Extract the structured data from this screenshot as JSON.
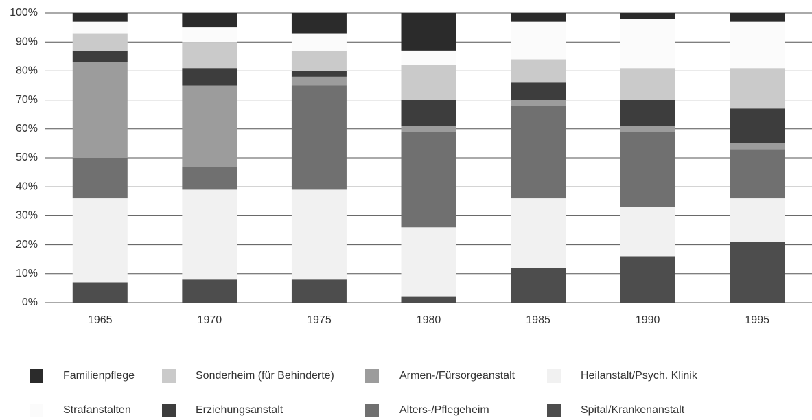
{
  "chart_data": {
    "type": "stacked_bar",
    "categories": [
      "1965",
      "1970",
      "1975",
      "1980",
      "1985",
      "1990",
      "1995"
    ],
    "series": [
      {
        "name": "Spital/Krankenanstalt",
        "color": "#4d4d4d",
        "values": [
          7,
          8,
          8,
          2,
          12,
          16,
          21
        ]
      },
      {
        "name": "Heilanstalt/Psych. Klinik",
        "color": "#f1f1f1",
        "values": [
          29,
          31,
          31,
          24,
          24,
          17,
          15
        ]
      },
      {
        "name": "Alters-/Pflegeheim",
        "color": "#707070",
        "values": [
          14,
          8,
          36,
          33,
          32,
          26,
          17
        ]
      },
      {
        "name": "Armen-/Fürsorgeanstalt",
        "color": "#9c9c9c",
        "values": [
          33,
          28,
          3,
          2,
          2,
          2,
          2
        ]
      },
      {
        "name": "Erziehungsanstalt",
        "color": "#3d3d3d",
        "values": [
          4,
          6,
          2,
          9,
          6,
          9,
          12
        ]
      },
      {
        "name": "Sonderheim (für Behinderte)",
        "color": "#cacaca",
        "values": [
          6,
          9,
          7,
          12,
          8,
          11,
          14
        ]
      },
      {
        "name": "Strafanstalten",
        "color": "#fbfbfb",
        "values": [
          4,
          5,
          6,
          5,
          13,
          17,
          16
        ]
      },
      {
        "name": "Familienpflege",
        "color": "#2b2b2b",
        "values": [
          3,
          5,
          7,
          13,
          3,
          2,
          3
        ]
      }
    ],
    "ylim": [
      0,
      100
    ],
    "yticks": [
      {
        "value": 0,
        "label": "0%"
      },
      {
        "value": 10,
        "label": "10%"
      },
      {
        "value": 20,
        "label": "20%"
      },
      {
        "value": 30,
        "label": "30%"
      },
      {
        "value": 40,
        "label": "40%"
      },
      {
        "value": 50,
        "label": "50%"
      },
      {
        "value": 60,
        "label": "60%"
      },
      {
        "value": 70,
        "label": "70%"
      },
      {
        "value": 80,
        "label": "80%"
      },
      {
        "value": 90,
        "label": "90%"
      },
      {
        "value": 100,
        "label": "100%"
      }
    ],
    "grid": true
  }
}
